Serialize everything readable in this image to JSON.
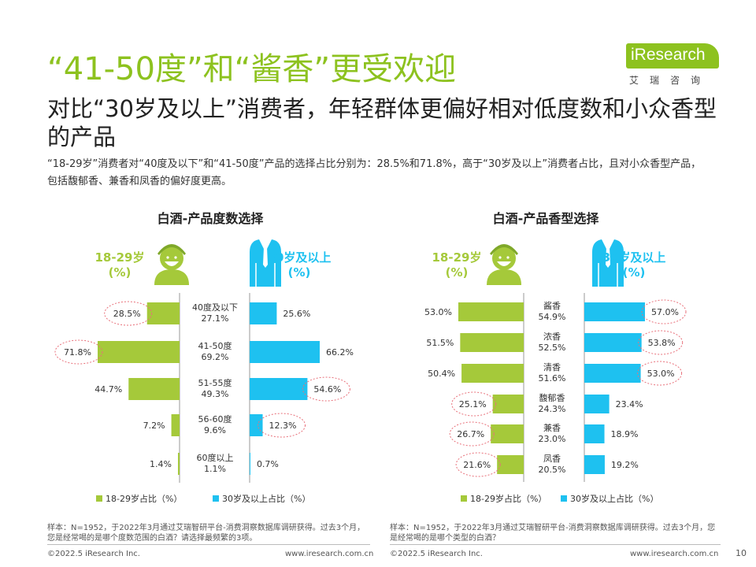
{
  "header": {
    "title": "“41-50度”和“酱香”更受欢迎",
    "subtitle": "对比“30岁及以上”消费者，年轻群体更偏好相对低度数和小众香型的产品",
    "description": "“18-29岁”消费者对“40度及以下”和“41-50度”产品的选择占比分别为：28.5%和71.8%，高于“30岁及以上”消费者占比，且对小众香型产品，包括馥郁香、兼香和凤香的偏好度更高。"
  },
  "logo": {
    "text": "iResearch",
    "sub": "艾瑞咨询"
  },
  "colors": {
    "green": "#a5c93a",
    "blue": "#1ec1f0",
    "title_green": "#8dc21f",
    "circle": "#e8707a"
  },
  "icons": {
    "young": "young-person-icon",
    "adult": "suit-person-icon"
  },
  "chart_data": [
    {
      "type": "bar",
      "title": "白酒-产品度数选择",
      "left_group_label": "18-29岁\n(%)",
      "right_group_label": "30岁及以上\n(%)",
      "categories": [
        "40度及以下",
        "41-50度",
        "51-55度",
        "56-60度",
        "60度以上"
      ],
      "category_totals": [
        "27.1%",
        "69.2%",
        "49.3%",
        "9.6%",
        "1.1%"
      ],
      "series": [
        {
          "name": "18-29岁占比（%）",
          "values": [
            28.5,
            71.8,
            44.7,
            7.2,
            1.4
          ]
        },
        {
          "name": "30岁及以上占比（%）",
          "values": [
            25.6,
            66.2,
            54.6,
            12.3,
            0.7
          ]
        }
      ],
      "highlighted": {
        "left": [
          0,
          1
        ],
        "right": [
          2,
          3
        ]
      },
      "legend": "bottom",
      "note": "样本：N=1952，于2022年3月通过艾瑞智研平台-消费洞察数据库调研获得。过去3个月，您是经常喝的是哪个度数范围的白酒？请选择最频繁的3项。"
    },
    {
      "type": "bar",
      "title": "白酒-产品香型选择",
      "left_group_label": "18-29岁\n(%)",
      "right_group_label": "30岁及以上\n(%)",
      "categories": [
        "酱香",
        "浓香",
        "清香",
        "馥郁香",
        "兼香",
        "凤香"
      ],
      "category_totals": [
        "54.9%",
        "52.5%",
        "51.6%",
        "24.3%",
        "23.0%",
        "20.5%"
      ],
      "series": [
        {
          "name": "18-29岁占比（%）",
          "values": [
            53.0,
            51.5,
            50.4,
            25.1,
            26.7,
            21.6
          ]
        },
        {
          "name": "30岁及以上占比（%）",
          "values": [
            57.0,
            53.8,
            53.0,
            23.4,
            18.9,
            19.2
          ]
        }
      ],
      "highlighted": {
        "left": [
          3,
          4,
          5
        ],
        "right": [
          0,
          1,
          2
        ]
      },
      "legend": "bottom",
      "note": "样本：N=1952，于2022年3月通过艾瑞智研平台-消费洞察数据库调研获得。过去3个月，您是经常喝的是哪个类型的白酒？"
    }
  ],
  "footer": {
    "left_copyright": "©2022.5 iResearch Inc.",
    "left_url": "www.iresearch.com.cn",
    "right_copyright": "©2022.5 iResearch Inc.",
    "right_url": "www.iresearch.com.cn",
    "page_number": "10"
  }
}
